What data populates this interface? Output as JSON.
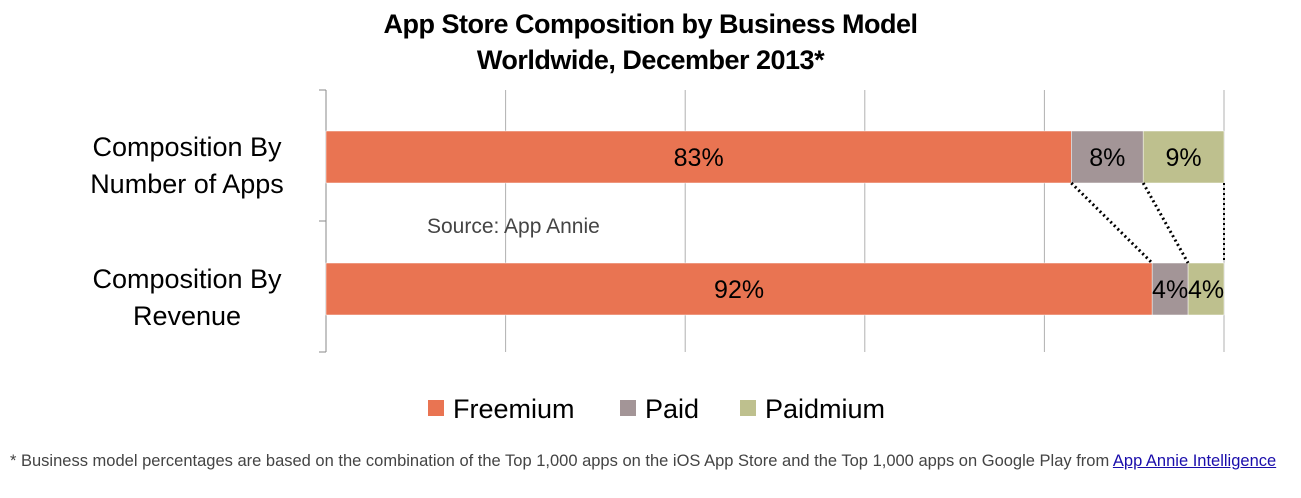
{
  "title": {
    "line1": "App Store Composition by Business Model",
    "line2": "Worldwide, December 2013*"
  },
  "chart_data": {
    "type": "bar",
    "orientation": "horizontal",
    "stacked": "100%",
    "categories": [
      "Composition By Number of Apps",
      "Composition By Revenue"
    ],
    "category_lines": [
      [
        "Composition By",
        "Number of Apps"
      ],
      [
        "Composition By",
        "Revenue"
      ]
    ],
    "series": [
      {
        "name": "Freemium",
        "values": [
          83,
          92
        ],
        "labels": [
          "83%",
          "92%"
        ],
        "color": "#e97452"
      },
      {
        "name": "Paid",
        "values": [
          8,
          4
        ],
        "labels": [
          "8%",
          "4%"
        ],
        "color": "#a39597"
      },
      {
        "name": "Paidmium",
        "values": [
          9,
          4
        ],
        "labels": [
          "9%",
          "4%"
        ],
        "color": "#bec08e"
      }
    ],
    "xlim": [
      0,
      100
    ],
    "grid": true,
    "legend_position": "bottom",
    "annotation": "Source: App Annie",
    "connector_lines": "dotted"
  },
  "footnote": {
    "text": "* Business model percentages are based on the combination of the Top 1,000 apps on the iOS App Store and the Top 1,000 apps on Google Play from ",
    "link_text": "App Annie Intelligence"
  }
}
